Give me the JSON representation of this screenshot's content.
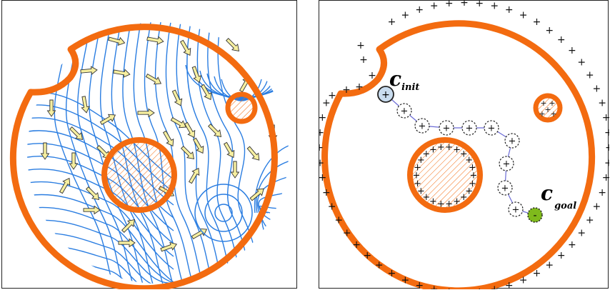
{
  "labels": {
    "init_main": "c",
    "init_sub": "init",
    "goal_main": "c",
    "goal_sub": "goal",
    "charge_plus": "+",
    "charge_minus": "-"
  },
  "colors": {
    "boundary": "#f36b10",
    "field_line": "#2a7de1",
    "arrow_fill": "#f6efa0",
    "init_node": "#c9dcef",
    "goal_node": "#7fba1c"
  }
}
